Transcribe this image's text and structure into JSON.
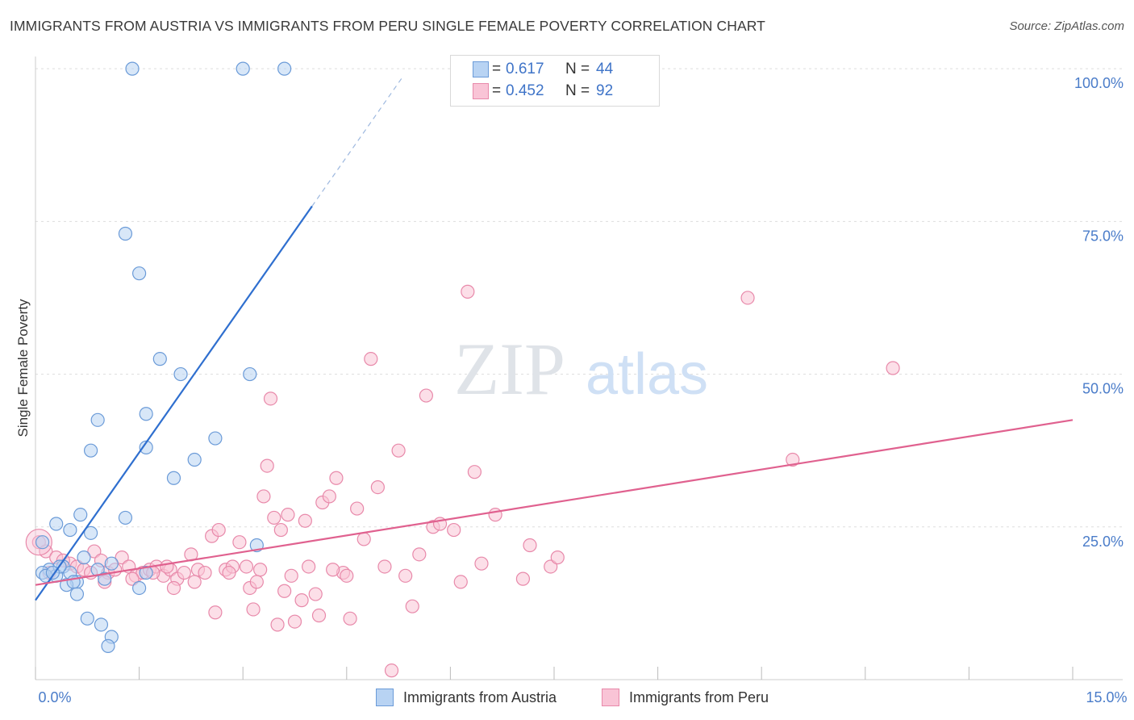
{
  "title": "IMMIGRANTS FROM AUSTRIA VS IMMIGRANTS FROM PERU SINGLE FEMALE POVERTY CORRELATION CHART",
  "source": "Source: ZipAtlas.com",
  "watermark": {
    "zip": "ZIP",
    "atlas": "atlas"
  },
  "legend": {
    "austria": {
      "r_label": "R =",
      "r_value": "0.617",
      "n_label": "N =",
      "n_value": "44"
    },
    "peru": {
      "r_label": "R =",
      "r_value": "0.452",
      "n_label": "N =",
      "n_value": "92"
    }
  },
  "bottom_legend": {
    "austria": "Immigrants from Austria",
    "peru": "Immigrants from Peru"
  },
  "colors": {
    "austria_fill": "#b8d3f3",
    "austria_stroke": "#6b9bd8",
    "austria_line": "#2f6fcf",
    "peru_fill": "#f9c4d6",
    "peru_stroke": "#e889aa",
    "peru_line": "#e0618f",
    "tick_text": "#4a7cc9",
    "grid": "#dddddd"
  },
  "chart_data": {
    "type": "scatter",
    "title": "IMMIGRANTS FROM AUSTRIA VS IMMIGRANTS FROM PERU SINGLE FEMALE POVERTY CORRELATION CHART",
    "xlabel": "",
    "ylabel": "Single Female Poverty",
    "xlim": [
      0,
      15
    ],
    "ylim": [
      0,
      102
    ],
    "x_tick_labels": [
      "0.0%",
      "15.0%"
    ],
    "y_ticks": [
      25,
      50,
      75,
      100
    ],
    "y_tick_labels": [
      "25.0%",
      "50.0%",
      "75.0%",
      "100.0%"
    ],
    "grid": true,
    "legend_position": "top-center",
    "series": [
      {
        "name": "Immigrants from Austria",
        "r": 0.617,
        "n": 44,
        "trend": {
          "x0": 0,
          "y0": 13.0,
          "x1": 4.0,
          "y1": 77.5,
          "dash_to_x": 5.3,
          "dash_to_y": 98.5
        },
        "points": [
          [
            1.4,
            100
          ],
          [
            3.0,
            100
          ],
          [
            3.6,
            100
          ],
          [
            1.3,
            73
          ],
          [
            1.5,
            66.5
          ],
          [
            1.8,
            52.5
          ],
          [
            2.1,
            50
          ],
          [
            3.1,
            50
          ],
          [
            1.6,
            43.5
          ],
          [
            0.9,
            42.5
          ],
          [
            1.6,
            38
          ],
          [
            2.6,
            39.5
          ],
          [
            0.8,
            37.5
          ],
          [
            2.3,
            36
          ],
          [
            2.0,
            33
          ],
          [
            1.3,
            26.5
          ],
          [
            0.65,
            27
          ],
          [
            0.3,
            25.5
          ],
          [
            0.5,
            24.5
          ],
          [
            0.8,
            24
          ],
          [
            3.2,
            22
          ],
          [
            0.1,
            22.5
          ],
          [
            0.7,
            20
          ],
          [
            1.1,
            19
          ],
          [
            0.4,
            18.5
          ],
          [
            0.2,
            18
          ],
          [
            0.9,
            18
          ],
          [
            0.5,
            17.5
          ],
          [
            0.3,
            17
          ],
          [
            0.1,
            17.5
          ],
          [
            0.6,
            16
          ],
          [
            1.0,
            16.5
          ],
          [
            1.6,
            17.5
          ],
          [
            0.45,
            15.5
          ],
          [
            1.5,
            15
          ],
          [
            0.6,
            14
          ],
          [
            0.75,
            10
          ],
          [
            0.95,
            9
          ],
          [
            1.1,
            7
          ],
          [
            1.05,
            5.5
          ],
          [
            0.15,
            17
          ],
          [
            0.35,
            18.5
          ],
          [
            0.25,
            17.5
          ],
          [
            0.55,
            16
          ]
        ]
      },
      {
        "name": "Immigrants from Peru",
        "r": 0.452,
        "n": 92,
        "trend": {
          "x0": 0,
          "y0": 15.5,
          "x1": 15.0,
          "y1": 42.5
        },
        "points": [
          [
            0.05,
            22.5
          ],
          [
            0.15,
            21
          ],
          [
            0.3,
            20
          ],
          [
            0.5,
            19
          ],
          [
            0.6,
            18.5
          ],
          [
            0.7,
            18
          ],
          [
            0.85,
            21
          ],
          [
            0.95,
            19.5
          ],
          [
            1.05,
            17.5
          ],
          [
            1.15,
            18
          ],
          [
            1.25,
            20
          ],
          [
            1.35,
            18.5
          ],
          [
            1.45,
            17
          ],
          [
            1.55,
            17.5
          ],
          [
            1.65,
            18
          ],
          [
            1.75,
            18.5
          ],
          [
            1.85,
            17
          ],
          [
            1.95,
            18
          ],
          [
            2.05,
            16.5
          ],
          [
            2.15,
            17.5
          ],
          [
            2.25,
            20.5
          ],
          [
            2.35,
            18
          ],
          [
            2.45,
            17.5
          ],
          [
            2.55,
            23.5
          ],
          [
            2.65,
            24.5
          ],
          [
            2.75,
            18
          ],
          [
            2.85,
            18.5
          ],
          [
            2.95,
            22.5
          ],
          [
            3.05,
            18.5
          ],
          [
            3.15,
            11.5
          ],
          [
            3.25,
            18
          ],
          [
            3.35,
            35
          ],
          [
            3.45,
            26.5
          ],
          [
            3.55,
            24.5
          ],
          [
            3.65,
            27
          ],
          [
            3.75,
            9.5
          ],
          [
            3.85,
            13
          ],
          [
            3.95,
            18.5
          ],
          [
            4.05,
            14
          ],
          [
            4.15,
            29
          ],
          [
            4.25,
            30
          ],
          [
            4.35,
            33
          ],
          [
            4.45,
            17.5
          ],
          [
            4.55,
            10
          ],
          [
            4.65,
            28
          ],
          [
            4.75,
            23
          ],
          [
            4.85,
            52.5
          ],
          [
            4.95,
            31.5
          ],
          [
            5.05,
            18.5
          ],
          [
            5.15,
            1.5
          ],
          [
            5.25,
            37.5
          ],
          [
            5.35,
            17
          ],
          [
            5.45,
            12
          ],
          [
            5.55,
            20.5
          ],
          [
            5.65,
            46.5
          ],
          [
            5.75,
            25
          ],
          [
            5.85,
            25.5
          ],
          [
            6.05,
            24.5
          ],
          [
            6.15,
            16
          ],
          [
            6.25,
            63.5
          ],
          [
            6.35,
            34
          ],
          [
            6.45,
            19
          ],
          [
            6.65,
            27
          ],
          [
            7.05,
            16.5
          ],
          [
            7.15,
            22
          ],
          [
            7.45,
            18.5
          ],
          [
            7.55,
            20
          ],
          [
            10.3,
            62.5
          ],
          [
            10.95,
            36
          ],
          [
            12.4,
            51
          ],
          [
            0.4,
            19.5
          ],
          [
            0.8,
            17.5
          ],
          [
            1.0,
            16
          ],
          [
            1.4,
            16.5
          ],
          [
            1.9,
            18.5
          ],
          [
            2.0,
            15
          ],
          [
            2.3,
            16
          ],
          [
            2.6,
            11
          ],
          [
            2.8,
            17.5
          ],
          [
            3.1,
            15
          ],
          [
            3.3,
            30
          ],
          [
            3.5,
            9
          ],
          [
            3.7,
            17
          ],
          [
            3.9,
            26
          ],
          [
            4.1,
            10.5
          ],
          [
            4.3,
            18
          ],
          [
            4.5,
            17
          ],
          [
            0.2,
            17.5
          ],
          [
            1.7,
            17.5
          ],
          [
            3.2,
            16
          ],
          [
            3.4,
            46
          ],
          [
            3.6,
            14.5
          ]
        ]
      }
    ]
  }
}
